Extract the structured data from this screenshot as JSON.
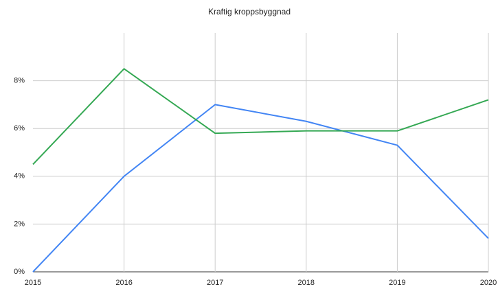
{
  "chart_data": {
    "type": "line",
    "title": "Kraftig kroppsbyggnad",
    "x": [
      2015,
      2016,
      2017,
      2018,
      2019,
      2020
    ],
    "xlim": [
      2015,
      2020
    ],
    "xticks": [
      2015,
      2016,
      2017,
      2018,
      2019,
      2020
    ],
    "ylim": [
      0,
      10
    ],
    "yticks": [
      {
        "value": 0,
        "label": "0%"
      },
      {
        "value": 2,
        "label": "2%"
      },
      {
        "value": 4,
        "label": "4%"
      },
      {
        "value": 6,
        "label": "6%"
      },
      {
        "value": 8,
        "label": "8%"
      }
    ],
    "grid": true,
    "series": [
      {
        "color": "#4285f4",
        "values": [
          0,
          4.0,
          7.0,
          6.3,
          5.3,
          1.4
        ]
      },
      {
        "color": "#34a853",
        "values": [
          4.5,
          8.5,
          5.8,
          5.9,
          5.9,
          7.2
        ]
      }
    ]
  }
}
